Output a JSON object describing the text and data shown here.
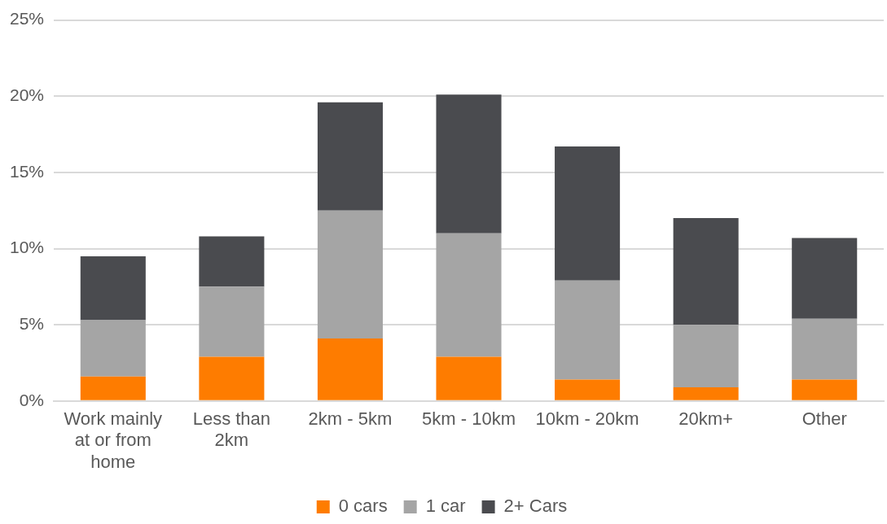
{
  "chart_data": {
    "type": "bar",
    "stacked": true,
    "categories": [
      "Work mainly at or from home",
      "Less than 2km",
      "2km - 5km",
      "5km - 10km",
      "10km - 20km",
      "20km+",
      "Other"
    ],
    "series": [
      {
        "name": "0 cars",
        "color": "#fe7c00",
        "values": [
          1.6,
          2.9,
          4.1,
          2.9,
          1.4,
          0.9,
          1.4
        ]
      },
      {
        "name": "1 car",
        "color": "#a5a5a5",
        "values": [
          3.7,
          4.6,
          8.4,
          8.1,
          6.5,
          4.1,
          4.0
        ]
      },
      {
        "name": "2+ Cars",
        "color": "#4a4b4f",
        "values": [
          4.2,
          3.3,
          7.1,
          9.1,
          8.8,
          7.0,
          5.3
        ]
      }
    ],
    "ylim": [
      0,
      25
    ],
    "yticks": [
      {
        "value": 0,
        "label": "0%"
      },
      {
        "value": 5,
        "label": "5%"
      },
      {
        "value": 10,
        "label": "10%"
      },
      {
        "value": 15,
        "label": "15%"
      },
      {
        "value": 20,
        "label": "20%"
      },
      {
        "value": 25,
        "label": "25%"
      }
    ],
    "grid": "y",
    "legend": "bottom"
  }
}
